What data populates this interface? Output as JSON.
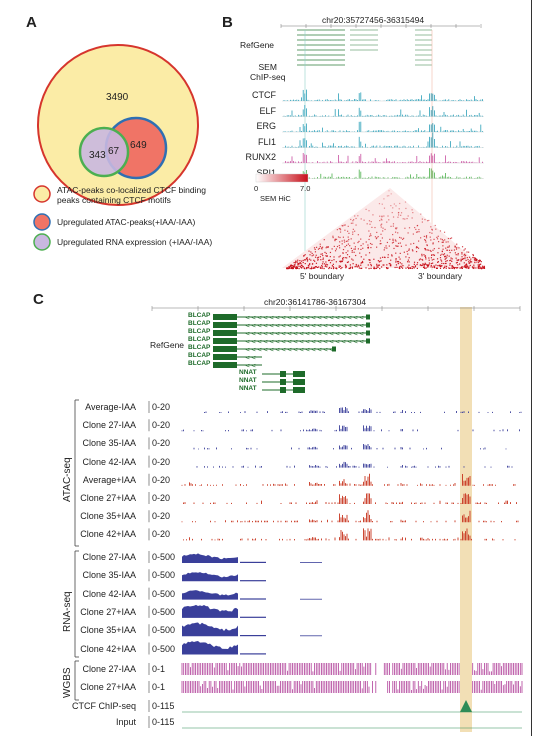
{
  "panels": {
    "a": "A",
    "b": "B",
    "c": "C"
  },
  "venn": {
    "big": "3490",
    "left": "343",
    "overlap": "67",
    "right": "649",
    "colors": {
      "big_fill": "#fbeca6",
      "big_stroke": "#d6352d",
      "red_fill": "#f07466",
      "red_stroke": "#2f6fb3",
      "purple_fill": "#c9b8e0",
      "purple_stroke": "#4caf50"
    }
  },
  "legend": [
    {
      "text1": "ATAC-peaks co-localized CTCF binding",
      "text2": "peaks containing CTCF motifs",
      "fill": "#fbeca6",
      "stroke": "#d6352d"
    },
    {
      "text1": "Upregulated ATAC-peaks(+IAA/-IAA)",
      "text2": "",
      "fill": "#f07466",
      "stroke": "#2f6fb3"
    },
    {
      "text1": "Upregulated RNA expression (+IAA/-IAA)",
      "text2": "",
      "fill": "#c9b8e0",
      "stroke": "#4caf50"
    }
  ],
  "panel_b": {
    "coord": "chr20:35727456-36315494",
    "refgene": "RefGene",
    "sem_line1": "SEM",
    "sem_line2": "ChIP-seq",
    "tracks": [
      {
        "label": "CTCF",
        "color": "#2a9fb8"
      },
      {
        "label": "ELF",
        "color": "#2a9fb8"
      },
      {
        "label": "ERG",
        "color": "#2a9fb8"
      },
      {
        "label": "FLI1",
        "color": "#2a9fb8"
      },
      {
        "label": "RUNX2",
        "color": "#c84fa0"
      },
      {
        "label": "SPI1",
        "color": "#4cb04c"
      }
    ],
    "hic_min": "0",
    "hic_max": "7.0",
    "hic_label": "SEM HiC",
    "boundary5": "5' boundary",
    "boundary3": "3' boundary"
  },
  "panel_c": {
    "coord": "chr20:36141786-36167304",
    "refgene": "RefGene",
    "genes_blcap": [
      "BLCAP",
      "BLCAP",
      "BLCAP",
      "BLCAP",
      "BLCAP",
      "BLCAP",
      "BLCAP"
    ],
    "genes_nnat": [
      "NNAT",
      "NNAT",
      "NNAT"
    ],
    "atac_group": "ATAC-seq",
    "rna_group": "RNA-seq",
    "wgbs_group": "WGBS",
    "atac": [
      {
        "label": "Average-IAA",
        "scale": "0-20",
        "color": "#3a3f9a"
      },
      {
        "label": "Clone 27-IAA",
        "scale": "0-20",
        "color": "#3a3f9a"
      },
      {
        "label": "Clone 35-IAA",
        "scale": "0-20",
        "color": "#3a3f9a"
      },
      {
        "label": "Clone 42-IAA",
        "scale": "0-20",
        "color": "#3a3f9a"
      },
      {
        "label": "Average+IAA",
        "scale": "0-20",
        "color": "#c8351f"
      },
      {
        "label": "Clone 27+IAA",
        "scale": "0-20",
        "color": "#c8351f"
      },
      {
        "label": "Clone 35+IAA",
        "scale": "0-20",
        "color": "#c8351f"
      },
      {
        "label": "Clone 42+IAA",
        "scale": "0-20",
        "color": "#c8351f"
      }
    ],
    "rna": [
      {
        "label": "Clone 27-IAA",
        "scale": "0-500"
      },
      {
        "label": "Clone 35-IAA",
        "scale": "0-500"
      },
      {
        "label": "Clone 42-IAA",
        "scale": "0-500"
      },
      {
        "label": "Clone 27+IAA",
        "scale": "0-500"
      },
      {
        "label": "Clone 35+IAA",
        "scale": "0-500"
      },
      {
        "label": "Clone 42+IAA",
        "scale": "0-500"
      }
    ],
    "wgbs": [
      {
        "label": "Clone 27-IAA",
        "scale": "0-1"
      },
      {
        "label": "Clone 27+IAA",
        "scale": "0-1"
      }
    ],
    "ctcf_chip": {
      "label": "CTCF ChIP-seq",
      "scale": "0-115"
    },
    "input": {
      "label": "Input",
      "scale": "0-115"
    },
    "rna_color": "#3a3f9a",
    "wgbs_color": "#b0409a",
    "highlight_color": "#f0d9a8"
  }
}
